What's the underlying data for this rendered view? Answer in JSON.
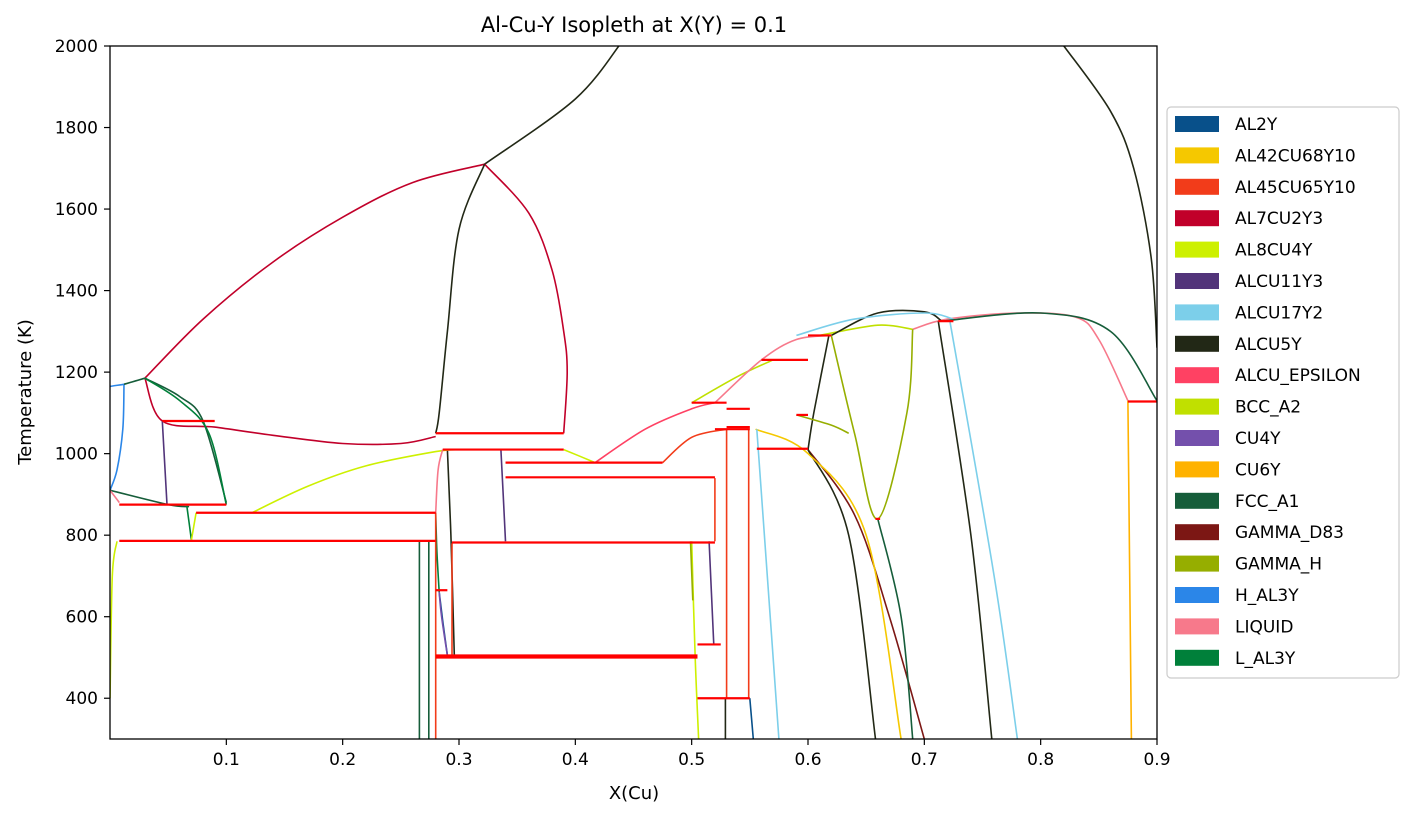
{
  "chart_data": {
    "type": "line",
    "title": "Al-Cu-Y Isopleth at X(Y) = 0.1",
    "xlabel": "X(Cu)",
    "ylabel": "Temperature (K)",
    "xlim": [
      0.0,
      0.9
    ],
    "ylim": [
      300,
      2000
    ],
    "xticks": [
      0.1,
      0.2,
      0.3,
      0.4,
      0.5,
      0.6,
      0.7,
      0.8,
      0.9
    ],
    "yticks": [
      400,
      600,
      800,
      1000,
      1200,
      1400,
      1600,
      1800,
      2000
    ],
    "grid": false,
    "legend_position": "center-right",
    "legend": [
      {
        "name": "AL2Y",
        "color": "#08508a"
      },
      {
        "name": "AL42CU68Y10",
        "color": "#f5c800"
      },
      {
        "name": "AL45CU65Y10",
        "color": "#f23c1a"
      },
      {
        "name": "AL7CU2Y3",
        "color": "#c1002a"
      },
      {
        "name": "AL8CU4Y",
        "color": "#cdf000"
      },
      {
        "name": "ALCU11Y3",
        "color": "#52347a"
      },
      {
        "name": "ALCU17Y2",
        "color": "#7ccfea"
      },
      {
        "name": "ALCU5Y",
        "color": "#222816"
      },
      {
        "name": "ALCU_EPSILON",
        "color": "#ff4163"
      },
      {
        "name": "BCC_A2",
        "color": "#c0e000"
      },
      {
        "name": "CU4Y",
        "color": "#7450ac"
      },
      {
        "name": "CU6Y",
        "color": "#ffb200"
      },
      {
        "name": "FCC_A1",
        "color": "#165d3a"
      },
      {
        "name": "GAMMA_D83",
        "color": "#7c1714"
      },
      {
        "name": "GAMMA_H",
        "color": "#96ae00"
      },
      {
        "name": "H_AL3Y",
        "color": "#2b86e8"
      },
      {
        "name": "LIQUID",
        "color": "#f7798b"
      },
      {
        "name": "L_AL3Y",
        "color": "#00803a"
      }
    ],
    "series": [
      {
        "color": "#222816",
        "points": [
          [
            0.322,
            1710
          ],
          [
            0.4,
            1870
          ],
          [
            0.44,
            2010
          ]
        ]
      },
      {
        "color": "#222816",
        "points": [
          [
            0.82,
            2000
          ],
          [
            0.86,
            1840
          ],
          [
            0.88,
            1700
          ],
          [
            0.895,
            1480
          ],
          [
            0.9,
            1260
          ]
        ]
      },
      {
        "color": "#c1002a",
        "points": [
          [
            0.03,
            1185
          ],
          [
            0.08,
            1330
          ],
          [
            0.14,
            1470
          ],
          [
            0.2,
            1580
          ],
          [
            0.26,
            1665
          ],
          [
            0.322,
            1710
          ]
        ]
      },
      {
        "color": "#c1002a",
        "points": [
          [
            0.322,
            1710
          ],
          [
            0.36,
            1590
          ],
          [
            0.38,
            1450
          ],
          [
            0.39,
            1300
          ],
          [
            0.393,
            1200
          ],
          [
            0.39,
            1050
          ]
        ]
      },
      {
        "color": "#c1002a",
        "points": [
          [
            0.03,
            1185
          ],
          [
            0.045,
            1080
          ],
          [
            0.09,
            1065
          ],
          [
            0.14,
            1045
          ],
          [
            0.2,
            1025
          ],
          [
            0.25,
            1025
          ],
          [
            0.28,
            1042
          ]
        ]
      },
      {
        "color": "#222816",
        "points": [
          [
            0.322,
            1710
          ],
          [
            0.3,
            1550
          ],
          [
            0.29,
            1300
          ],
          [
            0.283,
            1100
          ],
          [
            0.28,
            1050
          ]
        ]
      },
      {
        "color": "#222816",
        "points": [
          [
            0.29,
            1010
          ],
          [
            0.293,
            800
          ],
          [
            0.296,
            505
          ]
        ]
      },
      {
        "color": "#2b86e8",
        "points": [
          [
            0.0,
            1165
          ],
          [
            0.012,
            1170
          ]
        ]
      },
      {
        "color": "#2b86e8",
        "points": [
          [
            0.012,
            1170
          ],
          [
            0.011,
            1060
          ],
          [
            0.006,
            960
          ],
          [
            0.0,
            910
          ]
        ]
      },
      {
        "color": "#165d3a",
        "points": [
          [
            0.012,
            1170
          ],
          [
            0.03,
            1185
          ]
        ]
      },
      {
        "color": "#165d3a",
        "points": [
          [
            0.03,
            1185
          ],
          [
            0.06,
            1140
          ],
          [
            0.08,
            1080
          ],
          [
            0.1,
            880
          ]
        ]
      },
      {
        "color": "#00803a",
        "points": [
          [
            0.03,
            1185
          ],
          [
            0.06,
            1130
          ],
          [
            0.085,
            1050
          ],
          [
            0.1,
            875
          ]
        ]
      },
      {
        "color": "#52347a",
        "points": [
          [
            0.045,
            1080
          ],
          [
            0.049,
            875
          ]
        ]
      },
      {
        "color": "#165d3a",
        "points": [
          [
            0.0,
            910
          ],
          [
            0.05,
            875
          ],
          [
            0.068,
            870
          ]
        ]
      },
      {
        "color": "#f7798b",
        "points": [
          [
            0.0,
            910
          ],
          [
            0.008,
            880
          ]
        ]
      },
      {
        "color": "#cdf000",
        "points": [
          [
            0.0,
            400
          ],
          [
            0.002,
            700
          ],
          [
            0.006,
            785
          ]
        ]
      },
      {
        "color": "#00803a",
        "points": [
          [
            0.066,
            872
          ],
          [
            0.07,
            788
          ]
        ]
      },
      {
        "color": "#cdf000",
        "points": [
          [
            0.07,
            788
          ],
          [
            0.074,
            855
          ]
        ]
      },
      {
        "color": "#cdf000",
        "points": [
          [
            0.122,
            855
          ],
          [
            0.17,
            920
          ],
          [
            0.22,
            970
          ],
          [
            0.28,
            1005
          ],
          [
            0.3,
            1010
          ]
        ]
      },
      {
        "color": "#cdf000",
        "points": [
          [
            0.39,
            1010
          ],
          [
            0.417,
            978
          ]
        ]
      },
      {
        "color": "#165d3a",
        "points": [
          [
            0.266,
            300
          ],
          [
            0.266,
            786
          ]
        ]
      },
      {
        "color": "#165d3a",
        "points": [
          [
            0.274,
            300
          ],
          [
            0.274,
            786
          ]
        ]
      },
      {
        "color": "#00803a",
        "points": [
          [
            0.28,
            855
          ],
          [
            0.281,
            760
          ],
          [
            0.283,
            660
          ]
        ]
      },
      {
        "color": "#08508a",
        "points": [
          [
            0.283,
            660
          ],
          [
            0.286,
            590
          ],
          [
            0.29,
            505
          ]
        ]
      },
      {
        "color": "#7450ac",
        "points": [
          [
            0.283,
            660
          ],
          [
            0.285,
            600
          ],
          [
            0.29,
            505
          ]
        ]
      },
      {
        "color": "#f7798b",
        "points": [
          [
            0.28,
            855
          ],
          [
            0.282,
            960
          ],
          [
            0.286,
            1010
          ]
        ]
      },
      {
        "color": "#52347a",
        "points": [
          [
            0.336,
            1010
          ],
          [
            0.34,
            785
          ]
        ]
      },
      {
        "color": "#ff4163",
        "points": [
          [
            0.417,
            978
          ],
          [
            0.46,
            1060
          ],
          [
            0.5,
            1110
          ],
          [
            0.52,
            1125
          ]
        ]
      },
      {
        "color": "#c0e000",
        "points": [
          [
            0.5,
            1125
          ],
          [
            0.54,
            1190
          ],
          [
            0.57,
            1230
          ]
        ]
      },
      {
        "color": "#f7798b",
        "points": [
          [
            0.52,
            1125
          ],
          [
            0.56,
            1230
          ],
          [
            0.59,
            1280
          ],
          [
            0.62,
            1290
          ]
        ]
      },
      {
        "color": "#c0e000",
        "points": [
          [
            0.61,
            1290
          ],
          [
            0.66,
            1315
          ],
          [
            0.69,
            1305
          ]
        ]
      },
      {
        "color": "#f7798b",
        "points": [
          [
            0.69,
            1305
          ],
          [
            0.72,
            1330
          ],
          [
            0.78,
            1345
          ],
          [
            0.83,
            1335
          ],
          [
            0.85,
            1280
          ],
          [
            0.875,
            1130
          ]
        ]
      },
      {
        "color": "#222816",
        "points": [
          [
            0.62,
            1290
          ],
          [
            0.66,
            1345
          ],
          [
            0.7,
            1348
          ],
          [
            0.715,
            1325
          ]
        ]
      },
      {
        "color": "#7ccfea",
        "points": [
          [
            0.59,
            1290
          ],
          [
            0.64,
            1330
          ],
          [
            0.7,
            1345
          ],
          [
            0.725,
            1330
          ]
        ]
      },
      {
        "color": "#165d3a",
        "points": [
          [
            0.715,
            1325
          ],
          [
            0.8,
            1345
          ],
          [
            0.86,
            1300
          ],
          [
            0.9,
            1130
          ]
        ]
      },
      {
        "color": "#222816",
        "points": [
          [
            0.712,
            1325
          ],
          [
            0.74,
            800
          ],
          [
            0.758,
            300
          ]
        ]
      },
      {
        "color": "#7ccfea",
        "points": [
          [
            0.722,
            1325
          ],
          [
            0.76,
            700
          ],
          [
            0.78,
            300
          ]
        ]
      },
      {
        "color": "#96ae00",
        "points": [
          [
            0.62,
            1290
          ],
          [
            0.64,
            1050
          ],
          [
            0.66,
            840
          ],
          [
            0.685,
            1100
          ],
          [
            0.69,
            1305
          ]
        ]
      },
      {
        "color": "#222816",
        "points": [
          [
            0.618,
            1290
          ],
          [
            0.605,
            1100
          ],
          [
            0.6,
            1010
          ]
        ]
      },
      {
        "color": "#96ae00",
        "points": [
          [
            0.59,
            1095
          ],
          [
            0.62,
            1070
          ],
          [
            0.635,
            1050
          ]
        ]
      },
      {
        "color": "#7c1714",
        "points": [
          [
            0.6,
            1010
          ],
          [
            0.64,
            850
          ],
          [
            0.67,
            600
          ],
          [
            0.7,
            300
          ]
        ]
      },
      {
        "color": "#222816",
        "points": [
          [
            0.6,
            1010
          ],
          [
            0.635,
            800
          ],
          [
            0.658,
            300
          ]
        ]
      },
      {
        "color": "#f5c800",
        "points": [
          [
            0.555,
            1060
          ],
          [
            0.6,
            1000
          ],
          [
            0.65,
            800
          ],
          [
            0.68,
            300
          ]
        ]
      },
      {
        "color": "#7ccfea",
        "points": [
          [
            0.556,
            1060
          ],
          [
            0.565,
            700
          ],
          [
            0.575,
            300
          ]
        ]
      },
      {
        "color": "#165d3a",
        "points": [
          [
            0.66,
            840
          ],
          [
            0.68,
            600
          ],
          [
            0.69,
            300
          ]
        ]
      },
      {
        "color": "#f23c1a",
        "points": [
          [
            0.475,
            978
          ],
          [
            0.5,
            1040
          ],
          [
            0.53,
            1060
          ]
        ]
      },
      {
        "color": "#f23c1a",
        "points": [
          [
            0.52,
            940
          ],
          [
            0.52,
            785
          ]
        ]
      },
      {
        "color": "#52347a",
        "points": [
          [
            0.515,
            785
          ],
          [
            0.519,
            530
          ]
        ]
      },
      {
        "color": "#cdf000",
        "points": [
          [
            0.5,
            785
          ],
          [
            0.503,
            500
          ],
          [
            0.506,
            300
          ]
        ]
      },
      {
        "color": "#96ae00",
        "points": [
          [
            0.499,
            785
          ],
          [
            0.501,
            640
          ]
        ]
      },
      {
        "color": "#222816",
        "points": [
          [
            0.529,
            400
          ],
          [
            0.529,
            300
          ]
        ]
      },
      {
        "color": "#08508a",
        "points": [
          [
            0.55,
            400
          ],
          [
            0.553,
            300
          ]
        ]
      },
      {
        "color": "#f23c1a",
        "points": [
          [
            0.28,
            300
          ],
          [
            0.28,
            855
          ]
        ]
      },
      {
        "color": "#f23c1a",
        "points": [
          [
            0.294,
            505
          ],
          [
            0.294,
            780
          ]
        ]
      },
      {
        "color": "#f23c1a",
        "points": [
          [
            0.53,
            1060
          ],
          [
            0.53,
            400
          ]
        ]
      },
      {
        "color": "#f23c1a",
        "points": [
          [
            0.549,
            1060
          ],
          [
            0.549,
            400
          ]
        ]
      },
      {
        "color": "#ffb200",
        "points": [
          [
            0.875,
            1130
          ],
          [
            0.878,
            300
          ]
        ]
      }
    ],
    "invariant_lines": [
      {
        "x": [
          0.045,
          0.09
        ],
        "y": 1080
      },
      {
        "x": [
          0.008,
          0.1
        ],
        "y": 875
      },
      {
        "x": [
          0.008,
          0.28
        ],
        "y": 786
      },
      {
        "x": [
          0.074,
          0.28
        ],
        "y": 855
      },
      {
        "x": [
          0.28,
          0.39
        ],
        "y": 1050
      },
      {
        "x": [
          0.286,
          0.39
        ],
        "y": 1010
      },
      {
        "x": [
          0.28,
          0.29
        ],
        "y": 665
      },
      {
        "x": [
          0.294,
          0.52
        ],
        "y": 782
      },
      {
        "x": [
          0.28,
          0.505
        ],
        "y": 505
      },
      {
        "x": [
          0.28,
          0.505
        ],
        "y": 500
      },
      {
        "x": [
          0.34,
          0.475
        ],
        "y": 978
      },
      {
        "x": [
          0.34,
          0.52
        ],
        "y": 942
      },
      {
        "x": [
          0.5,
          0.53
        ],
        "y": 1125
      },
      {
        "x": [
          0.53,
          0.55
        ],
        "y": 1110
      },
      {
        "x": [
          0.53,
          0.55
        ],
        "y": 1065
      },
      {
        "x": [
          0.52,
          0.55
        ],
        "y": 1060
      },
      {
        "x": [
          0.56,
          0.6
        ],
        "y": 1230
      },
      {
        "x": [
          0.6,
          0.62
        ],
        "y": 1290
      },
      {
        "x": [
          0.59,
          0.6
        ],
        "y": 1095
      },
      {
        "x": [
          0.556,
          0.6
        ],
        "y": 1012
      },
      {
        "x": [
          0.505,
          0.525
        ],
        "y": 532
      },
      {
        "x": [
          0.505,
          0.55
        ],
        "y": 400
      },
      {
        "x": [
          0.658,
          0.662
        ],
        "y": 840
      },
      {
        "x": [
          0.712,
          0.725
        ],
        "y": 1325
      },
      {
        "x": [
          0.875,
          0.9
        ],
        "y": 1128
      }
    ]
  }
}
